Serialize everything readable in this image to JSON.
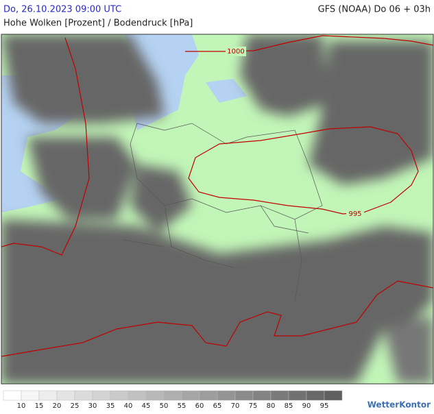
{
  "header": {
    "datetime": "Do, 26.10.2023 09:00 UTC",
    "model": "GFS (NOAA) Do 06 + 03h",
    "subtitle": "Hohe Wolken [Prozent] / Bodendruck [hPa]"
  },
  "isobars": [
    1000,
    995
  ],
  "legend": {
    "labels": [
      10,
      15,
      20,
      25,
      30,
      35,
      40,
      45,
      50,
      55,
      60,
      65,
      70,
      75,
      80,
      85,
      90,
      95
    ]
  },
  "logo": "WetterKontor"
}
